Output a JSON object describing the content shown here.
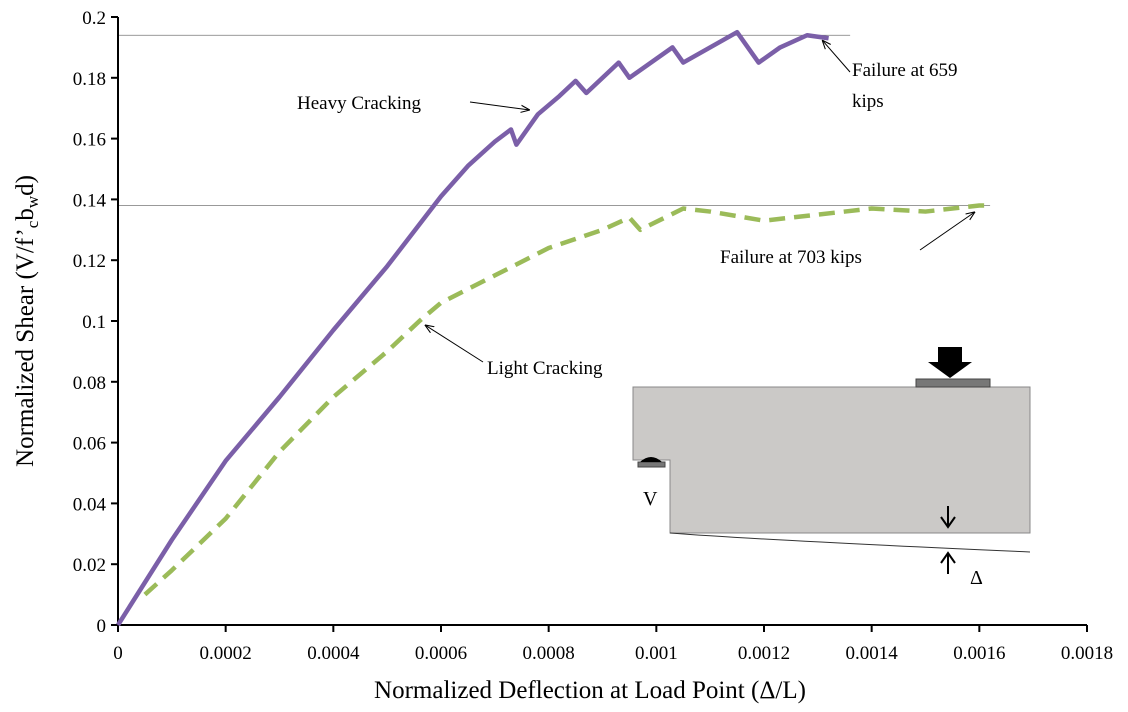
{
  "chart_data": {
    "type": "line",
    "ylabel_parts": [
      "Normalized Shear (V/f’",
      "c",
      "b",
      "w",
      "d)"
    ],
    "xlabel": "Normalized Deflection at Load Point (Δ/L)",
    "xlim": [
      0,
      0.0018
    ],
    "xticks": [
      0,
      0.0002,
      0.0004,
      0.0006,
      0.0008,
      0.001,
      0.0012,
      0.0014,
      0.0016,
      0.0018
    ],
    "ylim": [
      0,
      0.2
    ],
    "yticks": [
      0,
      0.02,
      0.04,
      0.06,
      0.08,
      0.1,
      0.12,
      0.14,
      0.16,
      0.18,
      0.2
    ],
    "series": [
      {
        "color": "#7b5fa8",
        "dashed": false,
        "x": [
          0,
          0.0001,
          0.0002,
          0.0003,
          0.0004,
          0.0005,
          0.0006,
          0.00065,
          0.0007,
          0.00073,
          0.00074,
          0.00078,
          0.00082,
          0.00085,
          0.00087,
          0.00093,
          0.00095,
          0.00103,
          0.00105,
          0.00115,
          0.00119,
          0.00123,
          0.00128,
          0.00132
        ],
        "values": [
          0,
          0.028,
          0.054,
          0.075,
          0.097,
          0.118,
          0.141,
          0.151,
          0.159,
          0.163,
          0.158,
          0.168,
          0.174,
          0.179,
          0.175,
          0.185,
          0.18,
          0.19,
          0.185,
          0.195,
          0.185,
          0.19,
          0.194,
          0.193
        ]
      },
      {
        "color": "#9bbb59",
        "dashed": true,
        "x": [
          5e-05,
          0.0001,
          0.0002,
          0.0003,
          0.0004,
          0.0005,
          0.00056,
          0.0006,
          0.0007,
          0.0008,
          0.0009,
          0.00095,
          0.00097,
          0.00105,
          0.0011,
          0.0012,
          0.0013,
          0.0014,
          0.0015,
          0.0016,
          0.00162
        ],
        "values": [
          0.01,
          0.018,
          0.035,
          0.057,
          0.075,
          0.09,
          0.1,
          0.106,
          0.115,
          0.124,
          0.13,
          0.134,
          0.13,
          0.137,
          0.136,
          0.133,
          0.135,
          0.137,
          0.136,
          0.138,
          0.138
        ]
      }
    ],
    "reference_lines": [
      {
        "y": 0.194,
        "x_end": 0.00136
      },
      {
        "y": 0.138,
        "x_end": 0.00162
      }
    ],
    "annotations": [
      {
        "lines": [
          "Heavy Cracking"
        ],
        "point": [
          0.000765,
          0.1694
        ]
      },
      {
        "lines": [
          "Failure at 659",
          "kips"
        ],
        "point": [
          0.001308,
          0.1924
        ]
      },
      {
        "lines": [
          "Failure at 703 kips"
        ],
        "point": [
          0.001592,
          0.1359
        ]
      },
      {
        "lines": [
          "Light Cracking"
        ],
        "point": [
          0.00057,
          0.0987
        ]
      }
    ],
    "inset_labels": [
      "V",
      "Δ"
    ]
  }
}
